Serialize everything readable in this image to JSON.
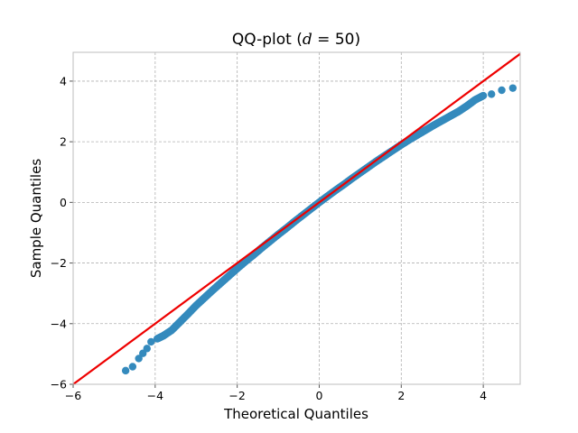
{
  "chart_data": {
    "type": "scatter",
    "title_prefix": "QQ-plot (",
    "title_math": "d",
    "title_suffix": " = 50)",
    "xlabel": "Theoretical Quantiles",
    "ylabel": "Sample Quantiles",
    "xlim": [
      -6,
      4.9
    ],
    "ylim": [
      -6,
      4.95
    ],
    "xticks": [
      -6,
      -4,
      -2,
      0,
      2,
      4
    ],
    "yticks": [
      -6,
      -4,
      -2,
      0,
      2,
      4
    ],
    "xtick_labels": [
      "−6",
      "−4",
      "−2",
      "0",
      "2",
      "4"
    ],
    "ytick_labels": [
      "−6",
      "−4",
      "−2",
      "0",
      "2",
      "4"
    ],
    "grid": true,
    "reference_line": {
      "slope": 1,
      "intercept": 0,
      "color": "#ee0000"
    },
    "marker_color": "#348abd",
    "sample_points": [
      [
        -4.72,
        -5.55
      ],
      [
        -4.55,
        -5.42
      ],
      [
        -4.4,
        -5.15
      ],
      [
        -4.3,
        -4.98
      ],
      [
        -4.2,
        -4.82
      ],
      [
        -4.1,
        -4.6
      ],
      [
        -3.95,
        -4.5
      ],
      [
        -3.8,
        -4.4
      ],
      [
        -3.6,
        -4.22
      ],
      [
        -3.4,
        -3.95
      ],
      [
        -3.2,
        -3.68
      ],
      [
        -3.0,
        -3.4
      ],
      [
        -2.8,
        -3.15
      ],
      [
        -2.6,
        -2.9
      ],
      [
        -2.4,
        -2.66
      ],
      [
        -2.2,
        -2.42
      ],
      [
        -2.0,
        -2.18
      ],
      [
        -1.8,
        -1.95
      ],
      [
        -1.6,
        -1.73
      ],
      [
        -1.4,
        -1.5
      ],
      [
        -1.2,
        -1.28
      ],
      [
        -1.0,
        -1.06
      ],
      [
        -0.8,
        -0.85
      ],
      [
        -0.6,
        -0.63
      ],
      [
        -0.4,
        -0.42
      ],
      [
        -0.2,
        -0.21
      ],
      [
        0.0,
        0.0
      ],
      [
        0.2,
        0.2
      ],
      [
        0.4,
        0.4
      ],
      [
        0.6,
        0.59
      ],
      [
        0.8,
        0.79
      ],
      [
        1.0,
        0.98
      ],
      [
        1.2,
        1.17
      ],
      [
        1.4,
        1.36
      ],
      [
        1.6,
        1.54
      ],
      [
        1.8,
        1.72
      ],
      [
        2.0,
        1.9
      ],
      [
        2.2,
        2.07
      ],
      [
        2.4,
        2.23
      ],
      [
        2.6,
        2.39
      ],
      [
        2.8,
        2.55
      ],
      [
        3.0,
        2.7
      ],
      [
        3.2,
        2.85
      ],
      [
        3.4,
        3.0
      ],
      [
        3.6,
        3.18
      ],
      [
        3.8,
        3.38
      ],
      [
        4.0,
        3.52
      ],
      [
        4.2,
        3.57
      ],
      [
        4.45,
        3.7
      ],
      [
        4.72,
        3.77
      ]
    ]
  }
}
